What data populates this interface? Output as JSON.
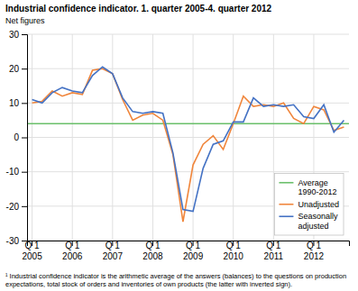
{
  "chart_data": {
    "type": "line",
    "title": "Industrial confidence indicator. 1. quarter 2005-4. quarter 2012",
    "subtitle": "Net figures",
    "footnote": "¹ Industrial confidence indicator is the arithmetic average of the answers (balances) to the questions on production expectations, total stock of orders and inventories of own products (the latter with inverted sign).",
    "categories": [
      "Q 1\n2005",
      null,
      null,
      null,
      "Q 1\n2006",
      null,
      null,
      null,
      "Q 1\n2007",
      null,
      null,
      null,
      "Q 1\n2008",
      null,
      null,
      null,
      "Q 1\n2009",
      null,
      null,
      null,
      "Q 1\n2010",
      null,
      null,
      null,
      "Q 1\n2011",
      null,
      null,
      null,
      "Q 1\n2012",
      null,
      null,
      null
    ],
    "reference_line": {
      "name": "Average\n1990-2012",
      "value": 4.0,
      "color": "#6abf6a"
    },
    "series": [
      {
        "name": "Unadjusted",
        "color": "#f0863c",
        "values": [
          10.0,
          10.5,
          13.5,
          12.0,
          13.0,
          12.5,
          19.5,
          20.0,
          18.5,
          11.0,
          5.0,
          6.5,
          7.0,
          5.0,
          -5.0,
          -24.5,
          -8.0,
          -2.0,
          0.5,
          -3.5,
          4.0,
          12.0,
          9.0,
          9.5,
          9.0,
          10.0,
          5.5,
          4.0,
          9.0,
          8.0,
          2.0,
          3.0
        ]
      },
      {
        "name": "Seasonally\nadjusted",
        "color": "#4472c4",
        "values": [
          11.0,
          10.0,
          13.0,
          14.5,
          13.5,
          13.0,
          18.0,
          20.5,
          18.5,
          11.5,
          7.5,
          7.0,
          7.5,
          7.0,
          -4.5,
          -21.0,
          -21.5,
          -9.0,
          -2.0,
          -1.0,
          4.5,
          4.5,
          11.5,
          9.0,
          9.5,
          9.0,
          9.5,
          6.0,
          5.5,
          9.5,
          1.5,
          5.0
        ]
      }
    ],
    "ylim": [
      -30,
      30
    ],
    "yticks": [
      -30,
      -20,
      -10,
      0,
      10,
      20,
      30
    ],
    "grid": true,
    "legend": "lower right"
  }
}
